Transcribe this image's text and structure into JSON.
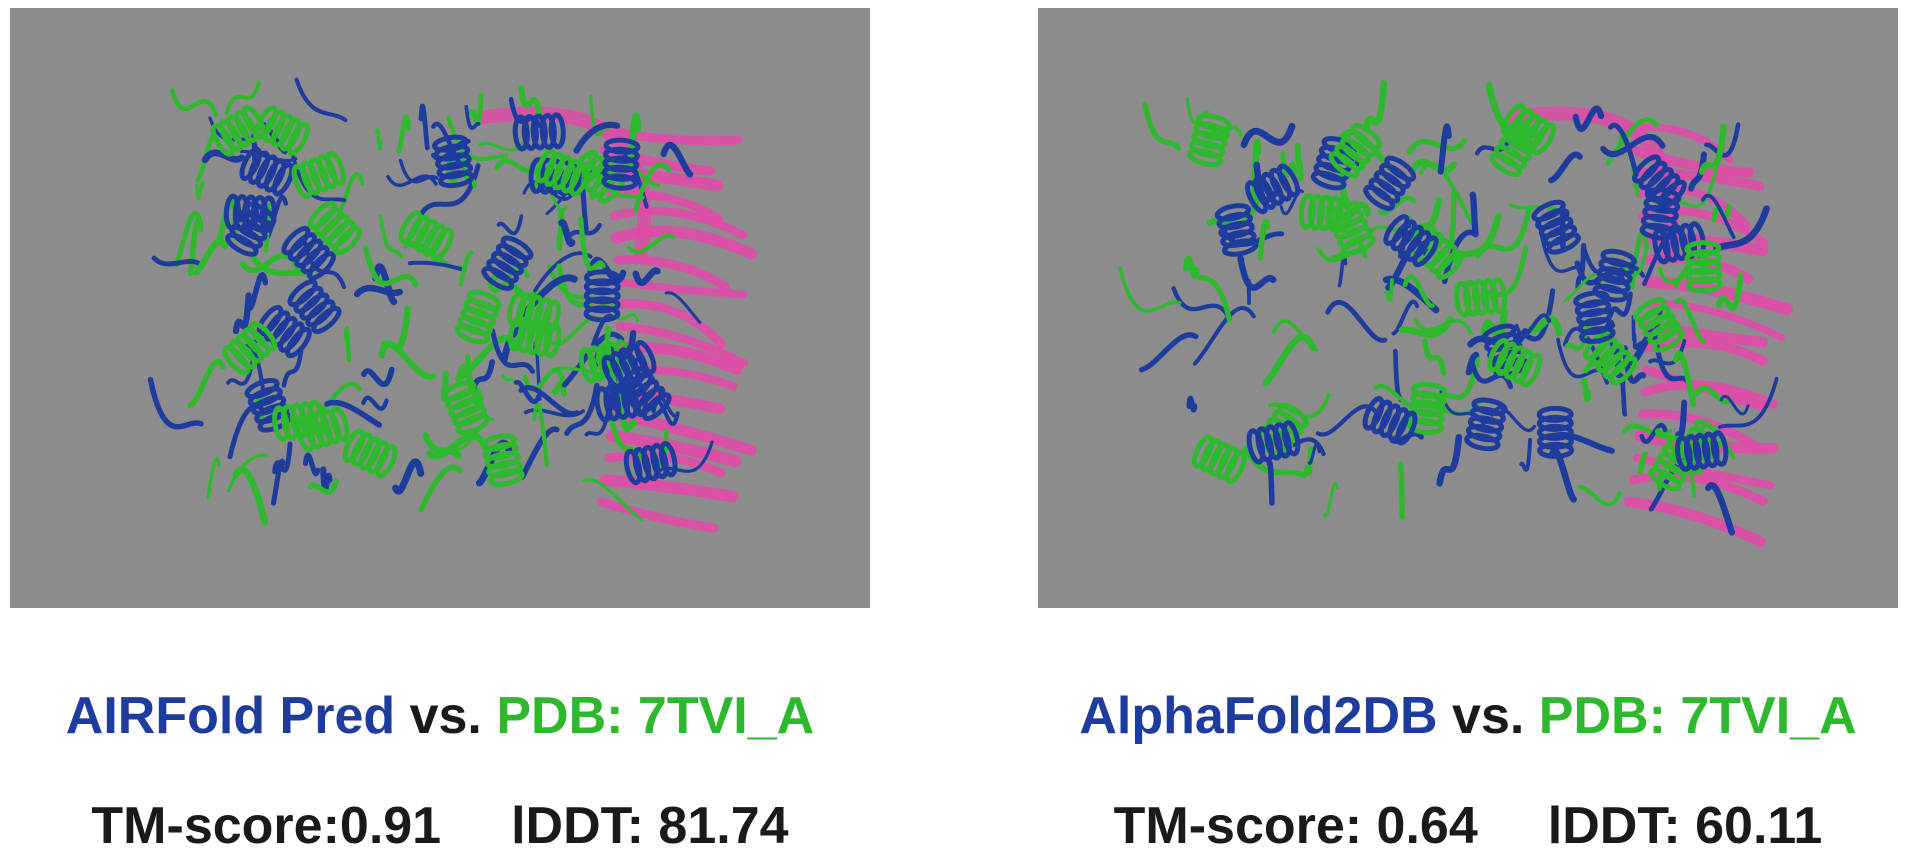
{
  "colors": {
    "background_viewport": "#8c8c8c",
    "prediction_blue": "#1e3c9e",
    "reference_green": "#2eb82e",
    "rna_pink": "#e04aa8",
    "score_text": "#1a1a1a"
  },
  "panels": [
    {
      "prediction_label": "AIRFold Pred",
      "vs_label": "vs.",
      "reference_label": "PDB: 7TVI_A",
      "tm_score_text": "TM-score:0.91",
      "lddt_text": "lDDT: 81.74"
    },
    {
      "prediction_label": "AlphaFold2DB",
      "vs_label": "vs.",
      "reference_label": "PDB: 7TVI_A",
      "tm_score_text": "TM-score: 0.64",
      "lddt_text": "lDDT: 60.11"
    }
  ]
}
